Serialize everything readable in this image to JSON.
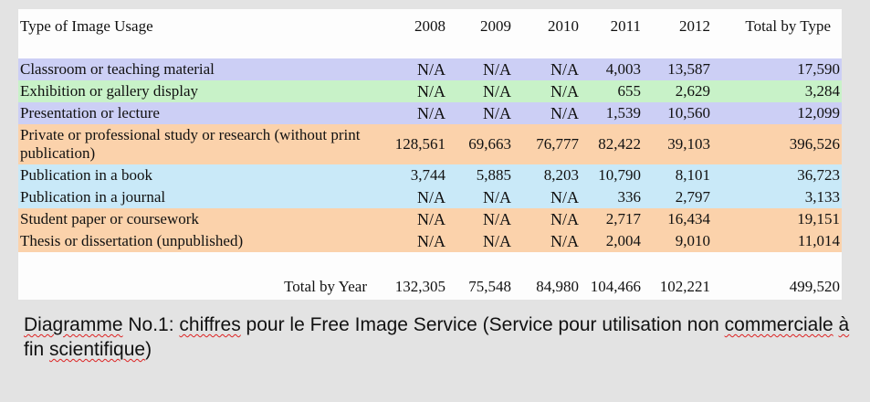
{
  "table": {
    "headers": {
      "type": "Type of Image Usage",
      "years": [
        "2008",
        "2009",
        "2010",
        "2011",
        "2012"
      ],
      "total": "Total by Type"
    },
    "rows": [
      {
        "label": "Classroom or teaching material",
        "values": [
          "N/A",
          "N/A",
          "N/A",
          "4,003",
          "13,587"
        ],
        "total": "17,590",
        "color": "#cccff5"
      },
      {
        "label": "Exhibition or gallery display",
        "values": [
          "N/A",
          "N/A",
          "N/A",
          "655",
          "2,629"
        ],
        "total": "3,284",
        "color": "#c8f2c8"
      },
      {
        "label": "Presentation or lecture",
        "values": [
          "N/A",
          "N/A",
          "N/A",
          "1,539",
          "10,560"
        ],
        "total": "12,099",
        "color": "#cccff5"
      },
      {
        "label": "Private or professional study or research (without print publication)",
        "values": [
          "128,561",
          "69,663",
          "76,777",
          "82,422",
          "39,103"
        ],
        "total": "396,526",
        "color": "#fbd2ab"
      },
      {
        "label": "Publication in a book",
        "values": [
          "3,744",
          "5,885",
          "8,203",
          "10,790",
          "8,101"
        ],
        "total": "36,723",
        "color": "#c9e9f8"
      },
      {
        "label": "Publication in a journal",
        "values": [
          "N/A",
          "N/A",
          "N/A",
          "336",
          "2,797"
        ],
        "total": "3,133",
        "color": "#c9e9f8"
      },
      {
        "label": "Student paper or coursework",
        "values": [
          "N/A",
          "N/A",
          "N/A",
          "2,717",
          "16,434"
        ],
        "total": "19,151",
        "color": "#fbd2ab"
      },
      {
        "label": "Thesis or dissertation (unpublished)",
        "values": [
          "N/A",
          "N/A",
          "N/A",
          "2,004",
          "9,010"
        ],
        "total": "11,014",
        "color": "#fbd2ab"
      }
    ],
    "total_row": {
      "label": "Total by Year",
      "values": [
        "132,305",
        "75,548",
        "84,980",
        "104,466",
        "102,221"
      ],
      "total": "499,520"
    }
  },
  "caption": {
    "word1": "Diagramme",
    "part2": " No.1: ",
    "word3": "chiffres",
    "part4": " pour le Free Image Service (Service pour utilisation non ",
    "word5": "commerciale",
    "part6": " ",
    "word7": "à",
    "part8": " fin ",
    "word9": "scientifique",
    "part10": ")"
  }
}
